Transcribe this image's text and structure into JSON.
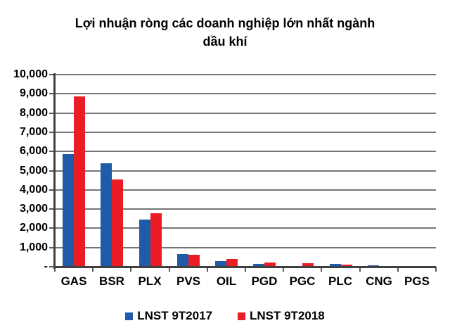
{
  "title": "Lợi nhuận ròng các doanh nghiệp lớn nhất ngành\ndầu khí",
  "colors": {
    "series1": "#1F5BA9",
    "series2": "#EB1C24",
    "gridline": "#767676",
    "axis": "#404040",
    "text": "#000000",
    "background": "#FFFFFF"
  },
  "legend": {
    "items": [
      {
        "label": "LNST 9T2017",
        "color": "#1F5BA9"
      },
      {
        "label": "LNST 9T2018",
        "color": "#EB1C24"
      }
    ]
  },
  "chart_data": {
    "type": "bar",
    "title": "Lợi nhuận ròng các doanh nghiệp lớn nhất ngành dầu khí",
    "categories": [
      "GAS",
      "BSR",
      "PLX",
      "PVS",
      "OIL",
      "PGD",
      "PGC",
      "PLC",
      "CNG",
      "PGS"
    ],
    "series": [
      {
        "name": "LNST 9T2017",
        "color": "#1F5BA9",
        "values": [
          5850,
          5400,
          2450,
          660,
          300,
          160,
          50,
          130,
          60,
          40
        ]
      },
      {
        "name": "LNST 9T2018",
        "color": "#EB1C24",
        "values": [
          8850,
          4550,
          2800,
          640,
          390,
          220,
          190,
          110,
          50,
          35
        ]
      }
    ],
    "xlabel": "",
    "ylabel": "",
    "ylim": [
      0,
      10000
    ],
    "ytick_step": 1000,
    "ytick_values": [
      0,
      1000,
      2000,
      3000,
      4000,
      5000,
      6000,
      7000,
      8000,
      9000,
      10000
    ],
    "ytick_labels": [
      "-",
      "1,000",
      "2,000",
      "3,000",
      "4,000",
      "5,000",
      "6,000",
      "7,000",
      "8,000",
      "9,000",
      "10,000"
    ],
    "grid": true,
    "legend_position": "bottom"
  }
}
